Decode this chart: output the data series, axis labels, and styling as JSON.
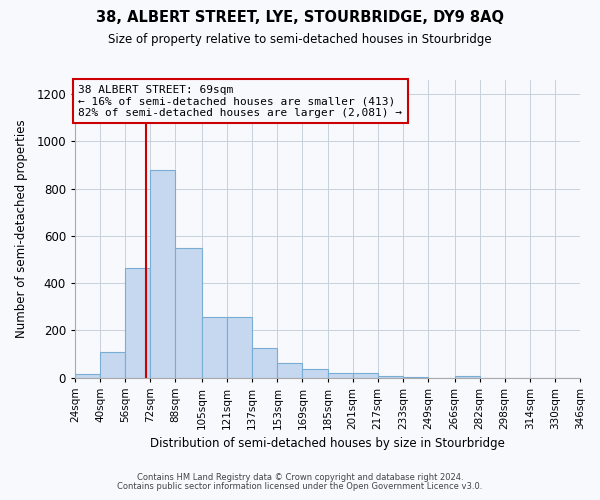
{
  "title": "38, ALBERT STREET, LYE, STOURBRIDGE, DY9 8AQ",
  "subtitle": "Size of property relative to semi-detached houses in Stourbridge",
  "xlabel": "Distribution of semi-detached houses by size in Stourbridge",
  "ylabel": "Number of semi-detached properties",
  "bin_labels": [
    "24sqm",
    "40sqm",
    "56sqm",
    "72sqm",
    "88sqm",
    "105sqm",
    "121sqm",
    "137sqm",
    "153sqm",
    "169sqm",
    "185sqm",
    "201sqm",
    "217sqm",
    "233sqm",
    "249sqm",
    "266sqm",
    "282sqm",
    "298sqm",
    "314sqm",
    "330sqm",
    "346sqm"
  ],
  "bin_edges": [
    24,
    40,
    56,
    72,
    88,
    105,
    121,
    137,
    153,
    169,
    185,
    201,
    217,
    233,
    249,
    266,
    282,
    298,
    314,
    330,
    346
  ],
  "bar_values": [
    15,
    110,
    465,
    880,
    550,
    258,
    258,
    125,
    63,
    35,
    20,
    20,
    8,
    2,
    0,
    8,
    0,
    0,
    0,
    0,
    8
  ],
  "bar_color": "#c5d8f0",
  "bar_edge_color": "#7aadd4",
  "vline_x": 69,
  "vline_color": "#cc0000",
  "annotation_title": "38 ALBERT STREET: 69sqm",
  "annotation_line1": "← 16% of semi-detached houses are smaller (413)",
  "annotation_line2": "82% of semi-detached houses are larger (2,081) →",
  "annotation_box_color": "#cc0000",
  "ylim": [
    0,
    1260
  ],
  "yticks": [
    0,
    200,
    400,
    600,
    800,
    1000,
    1200
  ],
  "footer1": "Contains HM Land Registry data © Crown copyright and database right 2024.",
  "footer2": "Contains public sector information licensed under the Open Government Licence v3.0.",
  "bg_color": "#f7f9fd",
  "grid_color": "#c8d0dc",
  "spine_color": "#aaaaaa"
}
